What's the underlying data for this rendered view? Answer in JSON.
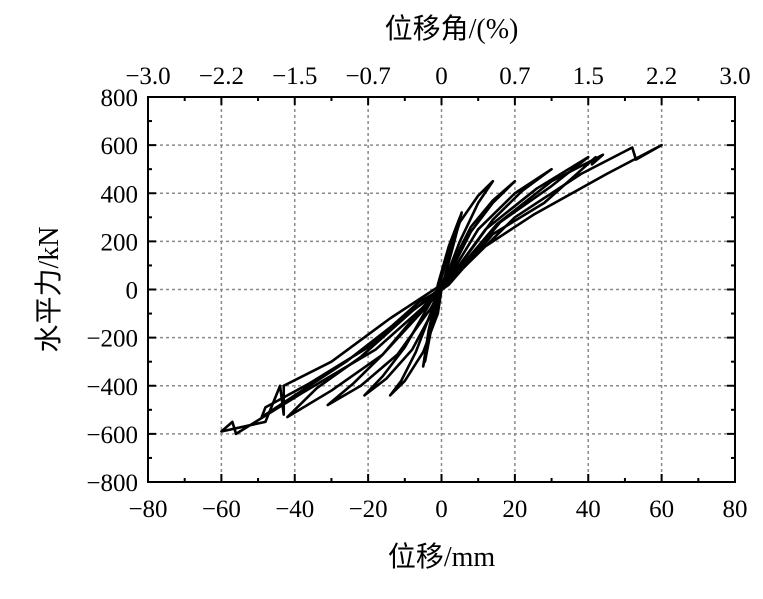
{
  "chart_data": {
    "type": "line",
    "xlabel": "位移/mm",
    "ylabel": "水平力/kN",
    "top_xlabel": "位移角/(%)",
    "xlim": [
      -80,
      80
    ],
    "ylim": [
      -800,
      800
    ],
    "x_ticks": [
      -80,
      -60,
      -40,
      -20,
      0,
      20,
      40,
      60,
      80
    ],
    "x_tick_labels": [
      "−80",
      "−60",
      "−40",
      "−20",
      "0",
      "20",
      "40",
      "60",
      "80"
    ],
    "y_ticks": [
      -800,
      -600,
      -400,
      -200,
      0,
      200,
      400,
      600,
      800
    ],
    "y_tick_labels": [
      "−800",
      "−600",
      "−400",
      "−200",
      "0",
      "200",
      "400",
      "600",
      "800"
    ],
    "top_ticks": [
      -80,
      -60,
      -40,
      -20,
      0,
      20,
      40,
      60,
      80
    ],
    "top_tick_labels": [
      "−3.0",
      "−2.2",
      "−1.5",
      "−0.7",
      "0",
      "0.7",
      "1.5",
      "2.2",
      "3.0"
    ],
    "grid": true,
    "series": [
      {
        "x": [
          0,
          3,
          5,
          2,
          -1,
          -3,
          -4.5,
          -3,
          0,
          3.5,
          5.5,
          2,
          -1,
          -3.5,
          -5,
          -3,
          0
        ],
        "y": [
          0,
          180,
          300,
          180,
          20,
          -150,
          -300,
          -180,
          0,
          200,
          320,
          160,
          0,
          -170,
          -320,
          -170,
          0
        ]
      },
      {
        "x": [
          0,
          5,
          10,
          14,
          10,
          5,
          1,
          -3,
          -7,
          -11,
          -14,
          -10,
          -5,
          -1,
          0
        ],
        "y": [
          0,
          200,
          360,
          450,
          390,
          280,
          100,
          -100,
          -260,
          -380,
          -440,
          -380,
          -260,
          -100,
          0
        ]
      },
      {
        "x": [
          0,
          8,
          14,
          20,
          14,
          8,
          2,
          -4,
          -10,
          -16,
          -21,
          -15,
          -8,
          -2,
          0
        ],
        "y": [
          0,
          240,
          360,
          450,
          370,
          260,
          80,
          -80,
          -240,
          -360,
          -440,
          -370,
          -250,
          -80,
          0
        ]
      },
      {
        "x": [
          0,
          10,
          20,
          30,
          22,
          14,
          4,
          -6,
          -16,
          -24,
          -31,
          -22,
          -12,
          -3,
          0
        ],
        "y": [
          0,
          250,
          400,
          500,
          410,
          290,
          80,
          -90,
          -270,
          -390,
          -480,
          -400,
          -270,
          -80,
          0
        ]
      },
      {
        "x": [
          0,
          12,
          26,
          40,
          30,
          16,
          4,
          -8,
          -22,
          -34,
          -42,
          -30,
          -16,
          -4,
          0
        ],
        "y": [
          0,
          250,
          420,
          550,
          430,
          280,
          60,
          -90,
          -280,
          -410,
          -530,
          -420,
          -270,
          -70,
          0
        ]
      },
      {
        "x": [
          0,
          15,
          30,
          44,
          41,
          42,
          28,
          14,
          2,
          -10,
          -26,
          -40,
          -47,
          -49,
          -48,
          -36,
          -20,
          -6,
          0
        ],
        "y": [
          0,
          270,
          450,
          560,
          520,
          550,
          360,
          230,
          20,
          -110,
          -300,
          -440,
          -510,
          -530,
          -490,
          -390,
          -240,
          -50,
          0
        ]
      },
      {
        "x": [
          0,
          20,
          38,
          52,
          53,
          60,
          45,
          25,
          10,
          0,
          -14,
          -30,
          -43,
          -43,
          -44,
          -48,
          -60,
          -57,
          -56,
          -38,
          -18,
          -4,
          0
        ],
        "y": [
          0,
          300,
          480,
          590,
          540,
          600,
          480,
          310,
          160,
          20,
          -120,
          -300,
          -400,
          -520,
          -400,
          -550,
          -590,
          -550,
          -600,
          -430,
          -250,
          -60,
          0
        ]
      }
    ]
  }
}
